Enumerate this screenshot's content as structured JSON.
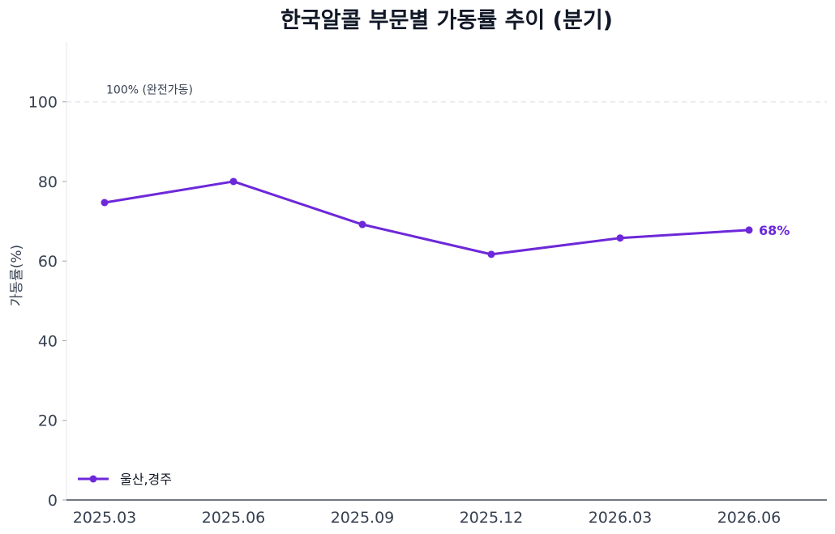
{
  "chart_data": {
    "type": "line",
    "title": "한국알콜 부문별 가동률 추이 (분기)",
    "xlabel": "",
    "ylabel": "가동률(%)",
    "categories": [
      "2025.03",
      "2025.06",
      "2025.09",
      "2025.12",
      "2026.03",
      "2026.06"
    ],
    "series": [
      {
        "name": "울산,경주",
        "color": "#6d28d9",
        "values": [
          74.7,
          80.0,
          69.2,
          61.7,
          65.8,
          67.8
        ]
      }
    ],
    "end_label": "68%",
    "ylim": [
      0,
      115
    ],
    "yticks": [
      0,
      20,
      40,
      60,
      80,
      100
    ],
    "reference_line": {
      "value": 100,
      "label": "100% (완전가동)"
    },
    "legend": "bottom-left",
    "grid": false
  }
}
